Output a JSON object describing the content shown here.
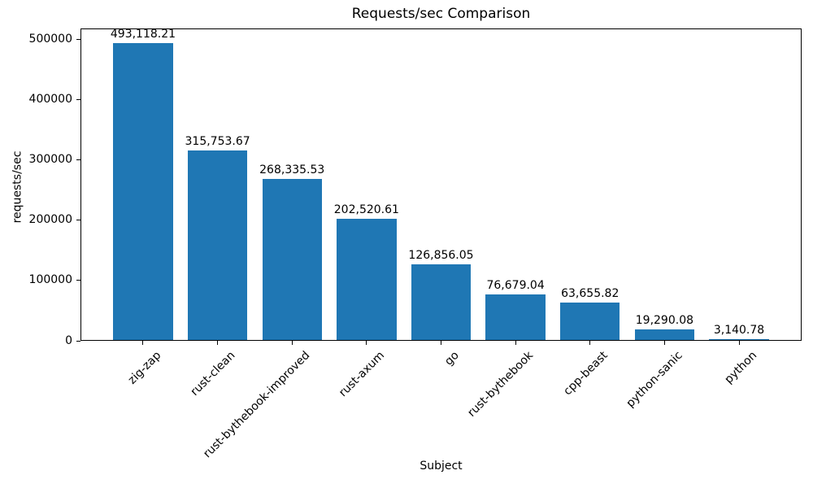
{
  "colors": {
    "bar": "#1f77b4",
    "axis": "#000000",
    "background": "#ffffff",
    "text": "#000000"
  },
  "chart_data": {
    "type": "bar",
    "title": "Requests/sec Comparison",
    "xlabel": "Subject",
    "ylabel": "requests/sec",
    "categories": [
      "zig-zap",
      "rust-clean",
      "rust-bythebook-improved",
      "rust-axum",
      "go",
      "rust-bythebook",
      "cpp-beast",
      "python-sanic",
      "python"
    ],
    "values": [
      493118.21,
      315753.67,
      268335.53,
      202520.61,
      126856.05,
      76679.04,
      63655.82,
      19290.08,
      3140.78
    ],
    "value_labels": [
      "493,118.21",
      "315,753.67",
      "268,335.53",
      "202,520.61",
      "126,856.05",
      "76,679.04",
      "63,655.82",
      "19,290.08",
      "3,140.78"
    ],
    "yticks": [
      0,
      100000,
      200000,
      300000,
      400000,
      500000
    ],
    "ytick_labels": [
      "0",
      "100000",
      "200000",
      "300000",
      "400000",
      "500000"
    ],
    "ylim": [
      0,
      517774
    ],
    "bar_width_fraction": 0.8,
    "grid": false,
    "legend": "none",
    "bar_color": "#1f77b4"
  }
}
